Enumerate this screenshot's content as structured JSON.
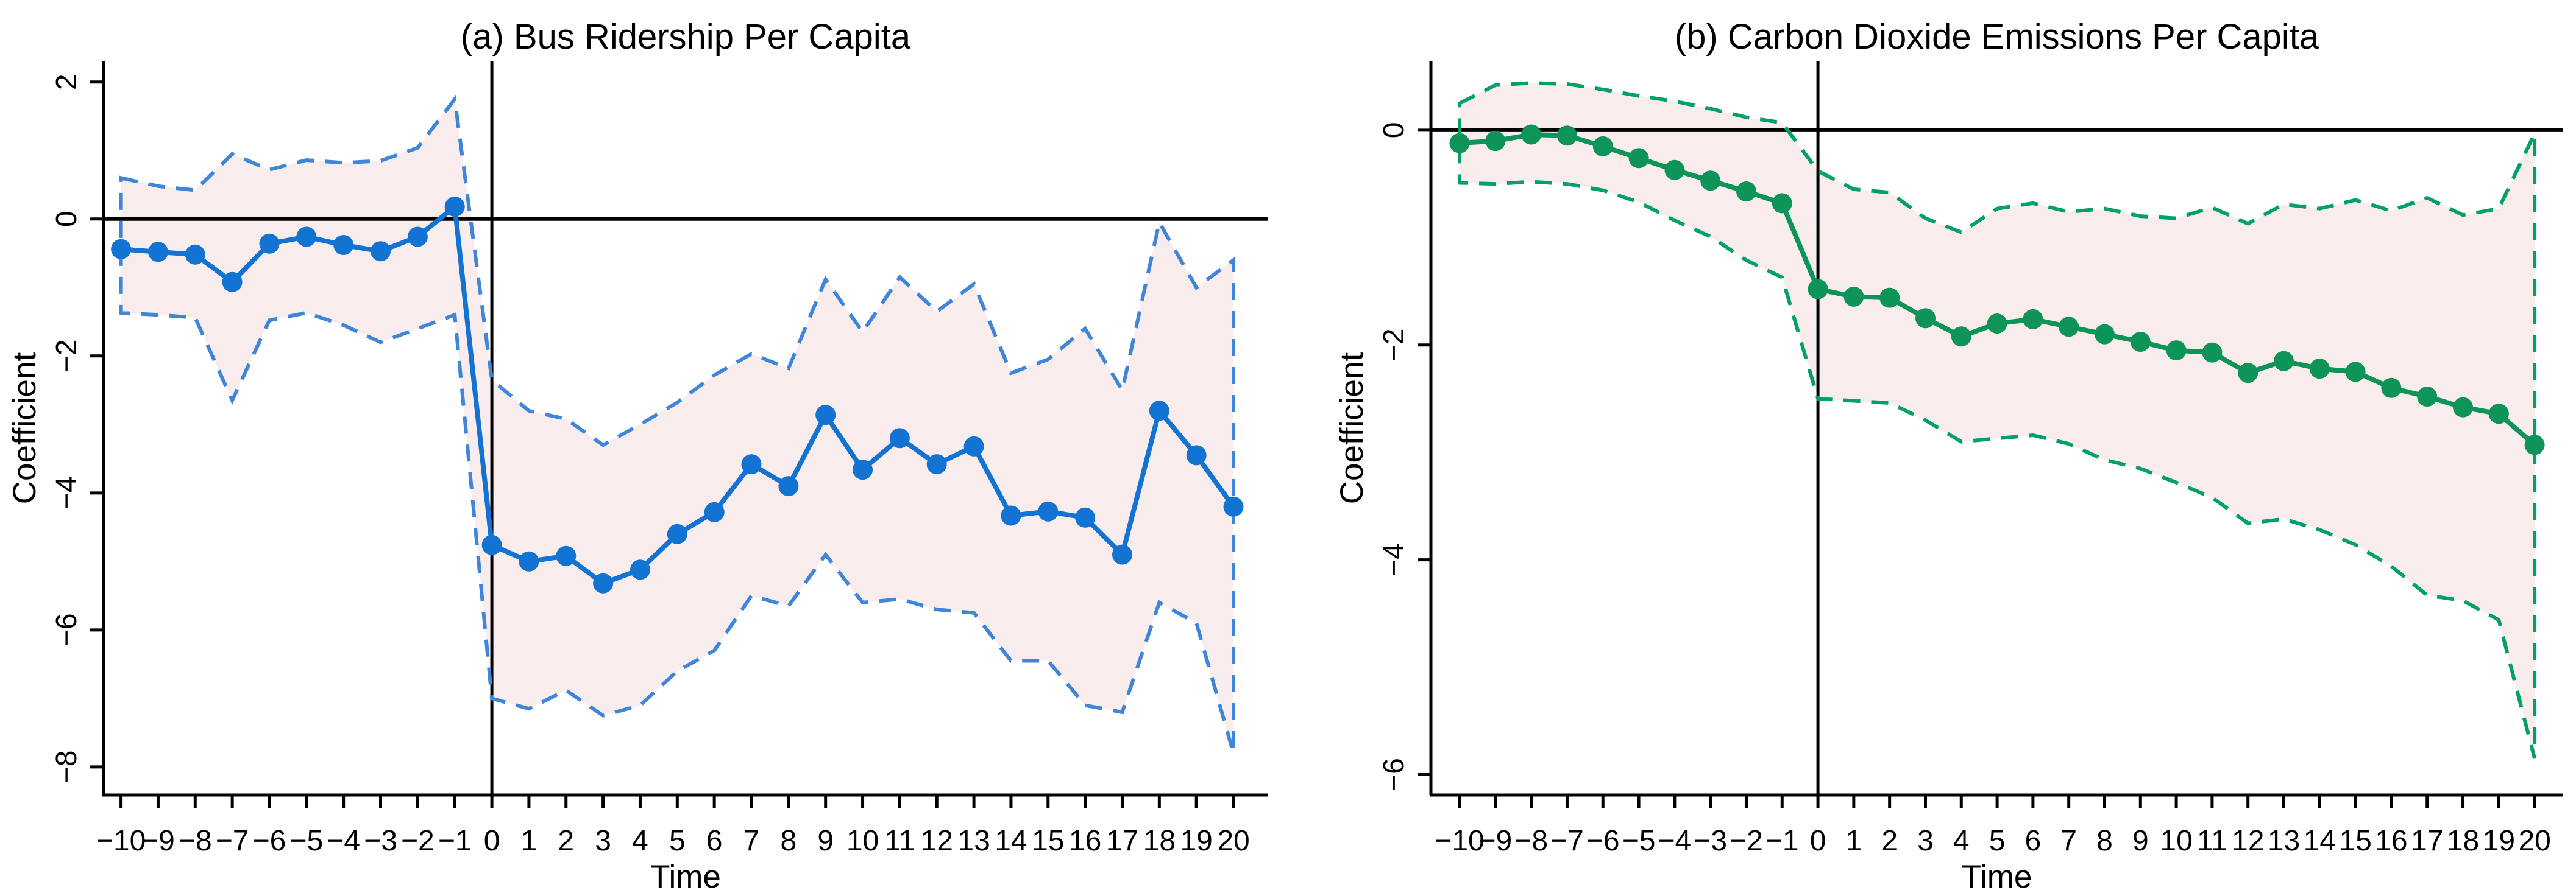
{
  "figure": {
    "kind": "two-panel event-study line chart",
    "background": "#ffffff",
    "text_color": "#000000",
    "reference_line_color": "#000000"
  },
  "chart_data": [
    {
      "type": "line",
      "panel": "a",
      "title": "(a) Bus Ridership Per Capita",
      "xlabel": "Time",
      "ylabel": "Coefficient",
      "legend": "none",
      "grid": false,
      "marker": "circle",
      "ci_fill": "#f9ecec",
      "x": [
        -10,
        -9,
        -8,
        -7,
        -6,
        -5,
        -4,
        -3,
        -2,
        -1,
        0,
        1,
        2,
        3,
        4,
        5,
        6,
        7,
        8,
        9,
        10,
        11,
        12,
        13,
        14,
        15,
        16,
        17,
        18,
        19,
        20
      ],
      "series": [
        {
          "name": "coefficient",
          "role": "mean",
          "color": "#1273d2",
          "values": [
            -0.44,
            -0.48,
            -0.52,
            -0.92,
            -0.36,
            -0.26,
            -0.38,
            -0.47,
            -0.26,
            0.18,
            -4.76,
            -5.0,
            -4.92,
            -5.32,
            -5.12,
            -4.6,
            -4.28,
            -3.58,
            -3.9,
            -2.86,
            -3.66,
            -3.2,
            -3.58,
            -3.32,
            -4.33,
            -4.27,
            -4.36,
            -4.9,
            -2.8,
            -3.45,
            -4.2
          ]
        },
        {
          "name": "ci_upper",
          "role": "ci-upper",
          "color": "#3f86da",
          "values": [
            0.6,
            0.48,
            0.42,
            0.95,
            0.72,
            0.86,
            0.82,
            0.85,
            1.04,
            1.75,
            -2.35,
            -2.8,
            -2.92,
            -3.3,
            -3.0,
            -2.68,
            -2.28,
            -1.97,
            -2.18,
            -0.88,
            -1.65,
            -0.85,
            -1.35,
            -0.95,
            -2.25,
            -2.05,
            -1.6,
            -2.5,
            -0.05,
            -1.0,
            -0.6
          ]
        },
        {
          "name": "ci_lower",
          "role": "ci-lower",
          "color": "#3f86da",
          "values": [
            -1.37,
            -1.4,
            -1.44,
            -2.65,
            -1.48,
            -1.37,
            -1.55,
            -1.8,
            -1.6,
            -1.4,
            -7.0,
            -7.15,
            -6.88,
            -7.25,
            -7.1,
            -6.6,
            -6.3,
            -5.5,
            -5.65,
            -4.9,
            -5.6,
            -5.55,
            -5.7,
            -5.75,
            -6.45,
            -6.45,
            -7.1,
            -7.2,
            -5.6,
            -5.9,
            -7.8
          ]
        }
      ],
      "x_ticks": [
        -10,
        -9,
        -8,
        -7,
        -6,
        -5,
        -4,
        -3,
        -2,
        -1,
        0,
        1,
        2,
        3,
        4,
        5,
        6,
        7,
        8,
        9,
        10,
        11,
        12,
        13,
        14,
        15,
        16,
        17,
        18,
        19,
        20
      ],
      "x_tick_labels": [
        "−10",
        "−9",
        "−8",
        "−7",
        "−6",
        "−5",
        "−4",
        "−3",
        "−2",
        "−1",
        "0",
        "1",
        "2",
        "3",
        "4",
        "5",
        "6",
        "7",
        "8",
        "9",
        "10",
        "11",
        "12",
        "13",
        "14",
        "15",
        "16",
        "17",
        "18",
        "19",
        "20"
      ],
      "y_ticks": [
        2,
        0,
        -2,
        -4,
        -6,
        -8
      ],
      "y_tick_labels": [
        "2",
        "0",
        "−2",
        "−4",
        "−6",
        "−8"
      ],
      "xlim": [
        -10.47,
        20.92
      ],
      "ylim": [
        -8.41,
        2.3
      ],
      "reference_lines": {
        "vertical_x": 0,
        "horizontal_y": 0
      }
    },
    {
      "type": "line",
      "panel": "b",
      "title": "(b) Carbon Dioxide Emissions Per Capita",
      "xlabel": "Time",
      "ylabel": "Coefficient",
      "legend": "none",
      "grid": false,
      "marker": "circle",
      "ci_fill": "#f9ecec",
      "x": [
        -10,
        -9,
        -8,
        -7,
        -6,
        -5,
        -4,
        -3,
        -2,
        -1,
        0,
        1,
        2,
        3,
        4,
        5,
        6,
        7,
        8,
        9,
        10,
        11,
        12,
        13,
        14,
        15,
        16,
        17,
        18,
        19,
        20
      ],
      "series": [
        {
          "name": "coefficient",
          "role": "mean",
          "color": "#0e9358",
          "values": [
            -0.12,
            -0.1,
            -0.04,
            -0.05,
            -0.15,
            -0.26,
            -0.37,
            -0.47,
            -0.57,
            -0.68,
            -1.48,
            -1.55,
            -1.56,
            -1.75,
            -1.92,
            -1.8,
            -1.76,
            -1.83,
            -1.9,
            -1.97,
            -2.05,
            -2.07,
            -2.26,
            -2.15,
            -2.22,
            -2.25,
            -2.4,
            -2.48,
            -2.58,
            -2.64,
            -2.93
          ]
        },
        {
          "name": "ci_upper",
          "role": "ci-upper",
          "color": "#00a069",
          "values": [
            0.25,
            0.42,
            0.44,
            0.43,
            0.38,
            0.32,
            0.27,
            0.2,
            0.12,
            0.07,
            -0.38,
            -0.55,
            -0.58,
            -0.82,
            -0.95,
            -0.73,
            -0.68,
            -0.76,
            -0.73,
            -0.8,
            -0.82,
            -0.72,
            -0.87,
            -0.69,
            -0.73,
            -0.65,
            -0.75,
            -0.63,
            -0.79,
            -0.73,
            -0.03
          ]
        },
        {
          "name": "ci_lower",
          "role": "ci-lower",
          "color": "#00a069",
          "values": [
            -0.49,
            -0.5,
            -0.48,
            -0.5,
            -0.56,
            -0.67,
            -0.84,
            -0.99,
            -1.21,
            -1.37,
            -2.5,
            -2.52,
            -2.54,
            -2.7,
            -2.9,
            -2.87,
            -2.84,
            -2.92,
            -3.07,
            -3.15,
            -3.28,
            -3.42,
            -3.66,
            -3.62,
            -3.72,
            -3.86,
            -4.06,
            -4.33,
            -4.38,
            -4.56,
            -5.85
          ]
        }
      ],
      "x_ticks": [
        -10,
        -9,
        -8,
        -7,
        -6,
        -5,
        -4,
        -3,
        -2,
        -1,
        0,
        1,
        2,
        3,
        4,
        5,
        6,
        7,
        8,
        9,
        10,
        11,
        12,
        13,
        14,
        15,
        16,
        17,
        18,
        19,
        20
      ],
      "x_tick_labels": [
        "−10",
        "−9",
        "−8",
        "−7",
        "−6",
        "−5",
        "−4",
        "−3",
        "−2",
        "−1",
        "0",
        "1",
        "2",
        "3",
        "4",
        "5",
        "6",
        "7",
        "8",
        "9",
        "10",
        "11",
        "12",
        "13",
        "14",
        "15",
        "16",
        "17",
        "18",
        "19",
        "20"
      ],
      "y_ticks": [
        0,
        -2,
        -4,
        -6
      ],
      "y_tick_labels": [
        "0",
        "−2",
        "−4",
        "−6"
      ],
      "xlim": [
        -10.8,
        20.78
      ],
      "ylim": [
        -6.19,
        0.64
      ],
      "reference_lines": {
        "vertical_x": 0,
        "horizontal_y": 0
      }
    }
  ]
}
